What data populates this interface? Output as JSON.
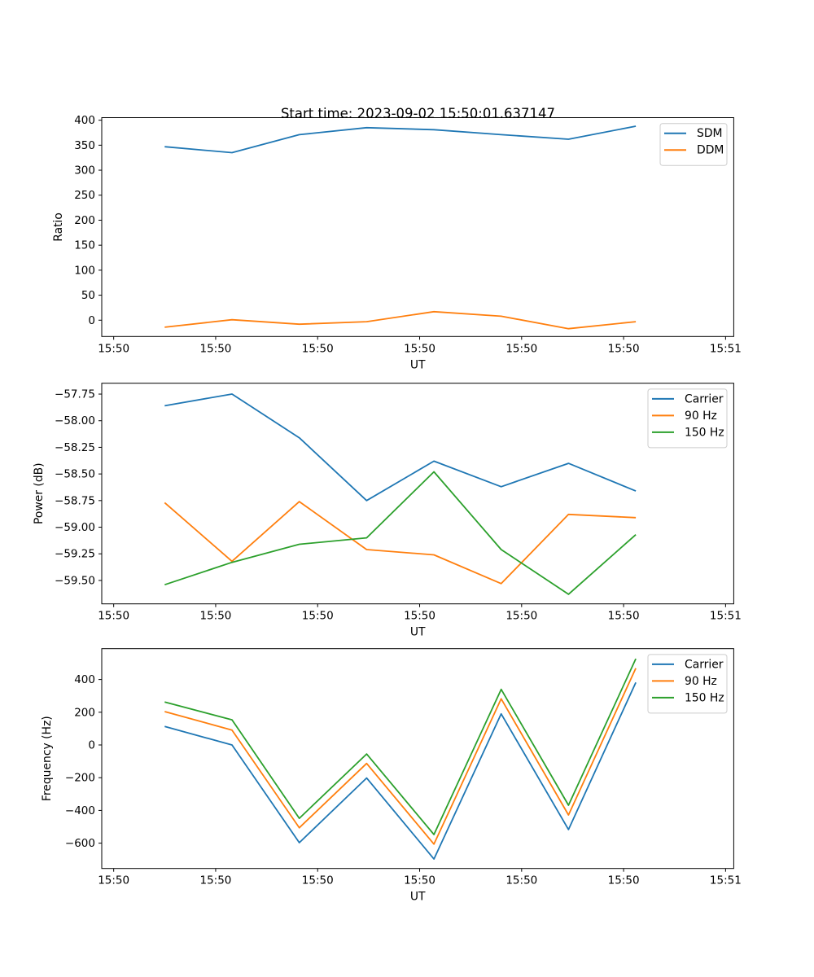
{
  "figure": {
    "title": "Start time: 2023-09-02 15:50:01.637147",
    "background": "#ffffff"
  },
  "palette": {
    "blue": "#1f77b4",
    "orange": "#ff7f0e",
    "green": "#2ca02c",
    "axis": "#000000",
    "legend_border": "#cccccc",
    "legend_fill": "#ffffff"
  },
  "chart_data": [
    {
      "type": "line",
      "name": "ratio",
      "xlabel": "UT",
      "ylabel": "Ratio",
      "x_seconds_after_15_50_00": [
        5.0,
        11.6,
        18.2,
        24.8,
        31.4,
        38.0,
        44.6,
        51.2
      ],
      "xlim_seconds": [
        -1.17,
        60.8
      ],
      "x_tick_seconds": [
        0,
        10,
        20,
        30,
        40,
        50,
        60
      ],
      "x_tick_labels": [
        "15:50",
        "15:50",
        "15:50",
        "15:50",
        "15:50",
        "15:50",
        "15:51"
      ],
      "ylim": [
        -32.6,
        405.1
      ],
      "y_tick_values": [
        0,
        50,
        100,
        150,
        200,
        250,
        300,
        350,
        400
      ],
      "y_tick_labels": [
        "0",
        "50",
        "100",
        "150",
        "200",
        "250",
        "300",
        "350",
        "400"
      ],
      "grid": false,
      "legend_position": "upper right",
      "series": [
        {
          "name": "SDM",
          "color_key": "blue",
          "values": [
            347,
            335,
            371,
            385,
            381,
            371,
            362,
            388
          ]
        },
        {
          "name": "DDM",
          "color_key": "orange",
          "values": [
            -14,
            1,
            -8,
            -3,
            17,
            8,
            -17,
            -3
          ]
        }
      ]
    },
    {
      "type": "line",
      "name": "power",
      "xlabel": "UT",
      "ylabel": "Power (dB)",
      "x_seconds_after_15_50_00": [
        5.0,
        11.6,
        18.2,
        24.8,
        31.4,
        38.0,
        44.6,
        51.2
      ],
      "xlim_seconds": [
        -1.17,
        60.8
      ],
      "x_tick_seconds": [
        0,
        10,
        20,
        30,
        40,
        50,
        60
      ],
      "x_tick_labels": [
        "15:50",
        "15:50",
        "15:50",
        "15:50",
        "15:50",
        "15:50",
        "15:51"
      ],
      "ylim": [
        -59.72,
        -57.648
      ],
      "y_tick_values": [
        -57.75,
        -58.0,
        -58.25,
        -58.5,
        -58.75,
        -59.0,
        -59.25,
        -59.5
      ],
      "y_tick_labels": [
        "−57.75",
        "−58.00",
        "−58.25",
        "−58.50",
        "−58.75",
        "−59.00",
        "−59.25",
        "−59.50"
      ],
      "grid": false,
      "legend_position": "upper right",
      "series": [
        {
          "name": "Carrier",
          "color_key": "blue",
          "values": [
            -57.86,
            -57.75,
            -58.16,
            -58.75,
            -58.38,
            -58.62,
            -58.4,
            -58.66
          ]
        },
        {
          "name": "90 Hz",
          "color_key": "orange",
          "values": [
            -58.77,
            -59.32,
            -58.76,
            -59.21,
            -59.26,
            -59.53,
            -58.88,
            -58.91
          ]
        },
        {
          "name": "150 Hz",
          "color_key": "green",
          "values": [
            -59.54,
            -59.33,
            -59.16,
            -59.1,
            -58.48,
            -59.21,
            -59.63,
            -59.07
          ]
        }
      ]
    },
    {
      "type": "line",
      "name": "frequency",
      "xlabel": "UT",
      "ylabel": "Frequency (Hz)",
      "x_seconds_after_15_50_00": [
        5.0,
        11.6,
        18.2,
        24.8,
        31.4,
        38.0,
        44.6,
        51.2
      ],
      "xlim_seconds": [
        -1.17,
        60.8
      ],
      "x_tick_seconds": [
        0,
        10,
        20,
        30,
        40,
        50,
        60
      ],
      "x_tick_labels": [
        "15:50",
        "15:50",
        "15:50",
        "15:50",
        "15:50",
        "15:50",
        "15:51"
      ],
      "ylim": [
        -754.7,
        588.6
      ],
      "y_tick_values": [
        400,
        200,
        0,
        -200,
        -400,
        -600
      ],
      "y_tick_labels": [
        "400",
        "200",
        "0",
        "−200",
        "−400",
        "−600"
      ],
      "grid": false,
      "legend_position": "upper right",
      "series": [
        {
          "name": "Carrier",
          "color_key": "blue",
          "values": [
            113,
            0,
            -597,
            -202,
            -697,
            190,
            -517,
            382
          ]
        },
        {
          "name": "90 Hz",
          "color_key": "orange",
          "values": [
            204,
            91,
            -506,
            -113,
            -606,
            282,
            -428,
            469
          ]
        },
        {
          "name": "150 Hz",
          "color_key": "green",
          "values": [
            262,
            154,
            -448,
            -55,
            -547,
            340,
            -368,
            527
          ]
        }
      ]
    }
  ]
}
